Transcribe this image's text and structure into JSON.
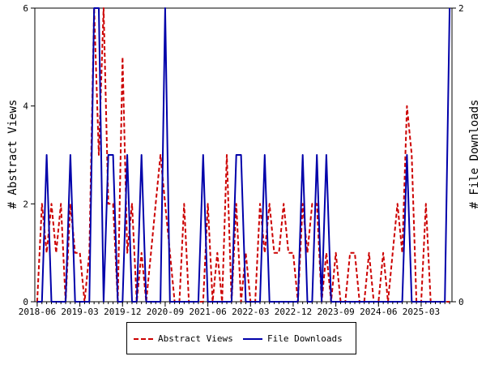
{
  "chart_data": {
    "type": "line",
    "title": "",
    "ylabel_left": "# Abstract Views",
    "ylabel_right": "# File Downloads",
    "ylim_left": [
      0,
      6
    ],
    "ylim_right": [
      0,
      2
    ],
    "yticks_left": [
      "0",
      "2",
      "4",
      "6"
    ],
    "yticks_right": [
      "0",
      "2"
    ],
    "xtick_labels": [
      "2018-06",
      "2019-03",
      "2019-12",
      "2020-09",
      "2021-06",
      "2022-03",
      "2022-12",
      "2023-09",
      "2024-06",
      "2025-03"
    ],
    "grid": false,
    "legend_position": "bottom",
    "x": [
      "2018-06",
      "2018-07",
      "2018-08",
      "2018-09",
      "2018-10",
      "2018-11",
      "2018-12",
      "2019-01",
      "2019-02",
      "2019-03",
      "2019-04",
      "2019-05",
      "2019-06",
      "2019-07",
      "2019-08",
      "2019-09",
      "2019-10",
      "2019-11",
      "2019-12",
      "2020-01",
      "2020-02",
      "2020-03",
      "2020-04",
      "2020-05",
      "2020-06",
      "2020-07",
      "2020-08",
      "2020-09",
      "2020-10",
      "2020-11",
      "2020-12",
      "2021-01",
      "2021-02",
      "2021-03",
      "2021-04",
      "2021-05",
      "2021-06",
      "2021-07",
      "2021-08",
      "2021-09",
      "2021-10",
      "2021-11",
      "2021-12",
      "2022-01",
      "2022-02",
      "2022-03",
      "2022-04",
      "2022-05",
      "2022-06",
      "2022-07",
      "2022-08",
      "2022-09",
      "2022-10",
      "2022-11",
      "2022-12",
      "2023-01",
      "2023-02",
      "2023-03",
      "2023-04",
      "2023-05",
      "2023-06",
      "2023-07",
      "2023-08",
      "2023-09",
      "2023-10",
      "2023-11",
      "2023-12",
      "2024-01",
      "2024-02",
      "2024-03",
      "2024-04",
      "2024-05",
      "2024-06",
      "2024-07",
      "2024-08",
      "2024-09",
      "2024-10",
      "2024-11",
      "2024-12",
      "2025-01",
      "2025-02",
      "2025-03",
      "2025-04",
      "2025-05",
      "2025-06",
      "2025-07",
      "2025-08",
      "2025-09"
    ],
    "series": [
      {
        "name": "Abstract Views",
        "axis": "left",
        "color": "#cc0000",
        "style": "dashed",
        "values": [
          0,
          2,
          1,
          2,
          1,
          2,
          0,
          2,
          1,
          1,
          0,
          1,
          6,
          3,
          6,
          2,
          2,
          0,
          5,
          1,
          2,
          0,
          1,
          0,
          1,
          2,
          3,
          2,
          1,
          0,
          0,
          2,
          0,
          0,
          0,
          0,
          2,
          0,
          1,
          0,
          3,
          0,
          2,
          0,
          1,
          0,
          0,
          2,
          1,
          2,
          1,
          1,
          2,
          1,
          1,
          0,
          2,
          1,
          2,
          2,
          0,
          1,
          0,
          1,
          0,
          0,
          1,
          1,
          0,
          0,
          1,
          0,
          0,
          1,
          0,
          1,
          2,
          1,
          4,
          3,
          0,
          0,
          2,
          0,
          0,
          0,
          0,
          0
        ]
      },
      {
        "name": "File Downloads",
        "axis": "right",
        "color": "#0000aa",
        "style": "solid",
        "values": [
          0,
          0,
          1,
          0,
          0,
          0,
          0,
          1,
          0,
          0,
          0,
          0,
          2,
          2,
          0,
          1,
          1,
          0,
          0,
          1,
          0,
          0,
          1,
          0,
          0,
          0,
          0,
          2,
          0,
          0,
          0,
          0,
          0,
          0,
          0,
          1,
          0,
          0,
          0,
          0,
          0,
          0,
          1,
          1,
          0,
          0,
          0,
          0,
          1,
          0,
          0,
          0,
          0,
          0,
          0,
          0,
          1,
          0,
          0,
          1,
          0,
          1,
          0,
          0,
          0,
          0,
          0,
          0,
          0,
          0,
          0,
          0,
          0,
          0,
          0,
          0,
          0,
          0,
          1,
          0,
          0,
          0,
          0,
          0,
          0,
          0,
          0,
          2
        ]
      }
    ]
  },
  "legend": {
    "abstract_label": "Abstract Views",
    "downloads_label": "File Downloads"
  }
}
